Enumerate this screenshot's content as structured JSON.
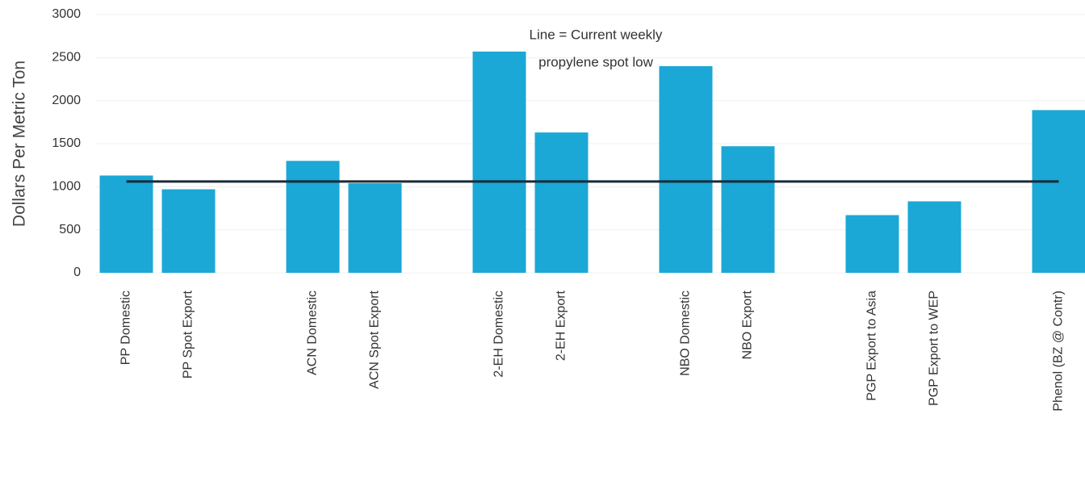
{
  "chart_data": {
    "type": "bar",
    "ylabel": "Dollars Per Metric Ton",
    "annotation": [
      "Line = Current weekly",
      "propylene spot low"
    ],
    "categories": [
      "PP Domestic",
      "PP Spot Export",
      null,
      "ACN Domestic",
      "ACN Spot Export",
      null,
      "2-EH Domestic",
      "2-EH Export",
      null,
      "NBO Domestic",
      "NBO Export",
      null,
      "PGP Export to Asia",
      "PGP Export to WEP",
      null,
      "Phenol (BZ @ Contr)"
    ],
    "values": [
      1130,
      970,
      null,
      1300,
      1040,
      null,
      2570,
      1630,
      null,
      2400,
      1470,
      null,
      670,
      830,
      null,
      1890
    ],
    "reference_line": 1060,
    "color": "#1ba8d6",
    "reference_color": "#1b2a38",
    "ylim": [
      0,
      3000
    ],
    "yticks": [
      0,
      500,
      1000,
      1500,
      2000,
      2500,
      3000
    ],
    "grid": true
  }
}
